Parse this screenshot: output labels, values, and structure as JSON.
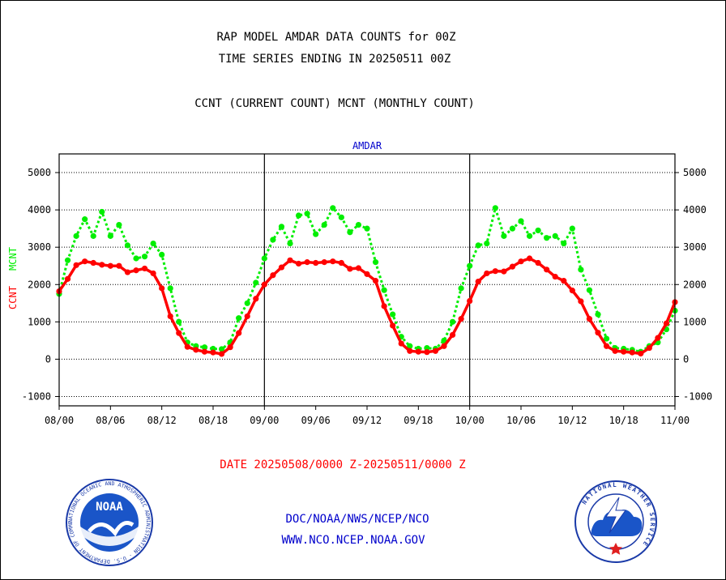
{
  "header": {
    "title_line1": "RAP MODEL AMDAR DATA COUNTS for 00Z",
    "title_line2": "TIME SERIES ENDING IN 20250511 00Z",
    "subtitle": "CCNT (CURRENT COUNT) MCNT (MONTHLY COUNT)"
  },
  "footer": {
    "date_range": "DATE 20250508/0000 Z-20250511/0000 Z",
    "org_line": "DOC/NOAA/NWS/NCEP/NCO",
    "url_line": "WWW.NCO.NCEP.NOAA.GOV"
  },
  "logos": {
    "noaa": {
      "text": "NOAA",
      "ring_text": "NATIONAL OCEANIC AND ATMOSPHERIC ADMINISTRATION · U.S. DEPARTMENT OF COMMERCE"
    },
    "nws": {
      "ring_text": "NATIONAL WEATHER SERVICE"
    }
  },
  "colors": {
    "ccnt": "#ff0000",
    "mcnt": "#00ee00",
    "plot_label": "#0000cc",
    "footer_date": "#ff0000",
    "footer_link": "#0000cc"
  },
  "chart_data": {
    "type": "line",
    "plot_label": "AMDAR",
    "ylabel_ccnt": "CCNT",
    "ylabel_mcnt": "MCNT",
    "ylim": [
      -1250,
      5500
    ],
    "yticks": [
      -1000,
      0,
      1000,
      2000,
      3000,
      4000,
      5000
    ],
    "xlim": [
      0,
      72
    ],
    "x_unit": "hours since 08/00",
    "xticks": [
      {
        "x": 0,
        "label": "08/00"
      },
      {
        "x": 6,
        "label": "08/06"
      },
      {
        "x": 12,
        "label": "08/12"
      },
      {
        "x": 18,
        "label": "08/18"
      },
      {
        "x": 24,
        "label": "09/00"
      },
      {
        "x": 30,
        "label": "09/06"
      },
      {
        "x": 36,
        "label": "09/12"
      },
      {
        "x": 42,
        "label": "09/18"
      },
      {
        "x": 48,
        "label": "10/00"
      },
      {
        "x": 54,
        "label": "10/06"
      },
      {
        "x": 60,
        "label": "10/12"
      },
      {
        "x": 66,
        "label": "10/18"
      },
      {
        "x": 72,
        "label": "11/00"
      }
    ],
    "day_dividers": [
      24,
      48
    ],
    "grid": true,
    "series": [
      {
        "name": "CCNT",
        "style": "solid",
        "values": [
          1820,
          2150,
          2520,
          2620,
          2580,
          2530,
          2500,
          2500,
          2330,
          2380,
          2430,
          2300,
          1900,
          1150,
          700,
          330,
          250,
          200,
          180,
          140,
          320,
          700,
          1150,
          1620,
          2000,
          2250,
          2460,
          2650,
          2560,
          2600,
          2580,
          2600,
          2620,
          2580,
          2420,
          2440,
          2280,
          2100,
          1420,
          900,
          420,
          220,
          200,
          190,
          220,
          350,
          650,
          1080,
          1560,
          2080,
          2300,
          2360,
          2350,
          2480,
          2620,
          2700,
          2580,
          2400,
          2210,
          2100,
          1840,
          1550,
          1080,
          710,
          350,
          220,
          200,
          180,
          150,
          300,
          570,
          960,
          1530
        ]
      },
      {
        "name": "MCNT",
        "style": "dotted",
        "values": [
          1750,
          2650,
          3300,
          3750,
          3300,
          3950,
          3300,
          3600,
          3050,
          2700,
          2750,
          3100,
          2800,
          1900,
          1000,
          450,
          350,
          320,
          280,
          270,
          450,
          1100,
          1500,
          2050,
          2700,
          3200,
          3550,
          3100,
          3850,
          3900,
          3350,
          3600,
          4050,
          3800,
          3400,
          3600,
          3500,
          2600,
          1850,
          1200,
          600,
          350,
          280,
          300,
          280,
          500,
          1000,
          1900,
          2500,
          3050,
          3100,
          4050,
          3300,
          3500,
          3700,
          3300,
          3450,
          3250,
          3300,
          3100,
          3500,
          2400,
          1850,
          1200,
          550,
          300,
          280,
          250,
          200,
          350,
          450,
          800,
          1300
        ]
      }
    ]
  }
}
